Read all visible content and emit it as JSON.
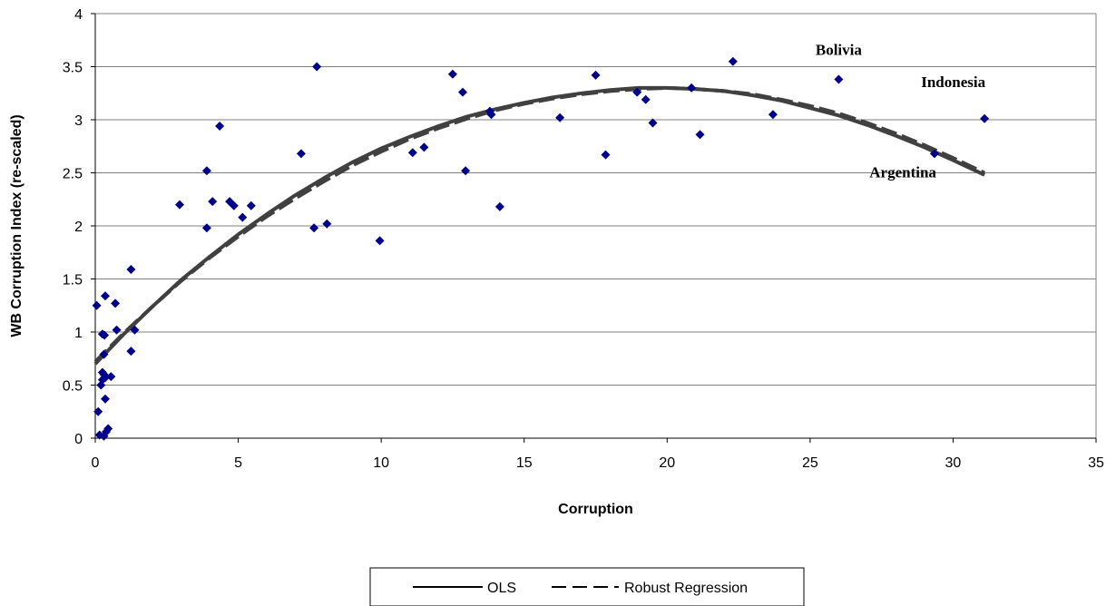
{
  "chart_data": {
    "type": "scatter",
    "title": "",
    "xlabel": "Corruption",
    "ylabel": "WB Corruption Index (re-scaled)",
    "xlim": [
      0,
      35
    ],
    "ylim": [
      0,
      4
    ],
    "x_ticks": [
      "0",
      "5",
      "10",
      "15",
      "20",
      "25",
      "30",
      "35"
    ],
    "y_ticks": [
      "0",
      "0.5",
      "1",
      "1.5",
      "2",
      "2.5",
      "3",
      "3.5",
      "4"
    ],
    "grid": "horizontal",
    "legend_position": "bottom",
    "colors": {
      "points": "#00008B",
      "fit_lines": "#404040",
      "grid": "#808080",
      "axes": "#000000"
    },
    "series": [
      {
        "name": "",
        "kind": "scatter",
        "marker": "diamond",
        "points": [
          [
            0.05,
            1.25
          ],
          [
            0.1,
            0.25
          ],
          [
            0.15,
            0.03
          ],
          [
            0.2,
            0.5
          ],
          [
            0.25,
            0.55
          ],
          [
            0.25,
            0.62
          ],
          [
            0.25,
            0.98
          ],
          [
            0.3,
            0.79
          ],
          [
            0.3,
            0.02
          ],
          [
            0.3,
            0.6
          ],
          [
            0.32,
            0.97
          ],
          [
            0.35,
            0.37
          ],
          [
            0.35,
            0.57
          ],
          [
            0.35,
            1.34
          ],
          [
            0.38,
            0.06
          ],
          [
            0.45,
            0.09
          ],
          [
            0.55,
            0.58
          ],
          [
            0.7,
            1.27
          ],
          [
            0.75,
            1.02
          ],
          [
            1.25,
            1.59
          ],
          [
            1.25,
            0.82
          ],
          [
            1.38,
            1.02
          ],
          [
            2.95,
            2.2
          ],
          [
            3.9,
            2.52
          ],
          [
            3.9,
            1.98
          ],
          [
            4.1,
            2.23
          ],
          [
            4.35,
            2.94
          ],
          [
            4.7,
            2.23
          ],
          [
            4.85,
            2.19
          ],
          [
            5.15,
            2.08
          ],
          [
            5.45,
            2.19
          ],
          [
            7.2,
            2.68
          ],
          [
            7.65,
            1.98
          ],
          [
            7.75,
            3.5
          ],
          [
            8.1,
            2.02
          ],
          [
            9.95,
            1.86
          ],
          [
            11.1,
            2.69
          ],
          [
            11.5,
            2.74
          ],
          [
            12.5,
            3.43
          ],
          [
            12.85,
            3.26
          ],
          [
            12.95,
            2.52
          ],
          [
            13.8,
            3.08
          ],
          [
            13.85,
            3.05
          ],
          [
            14.15,
            2.18
          ],
          [
            16.25,
            3.02
          ],
          [
            17.5,
            3.42
          ],
          [
            17.85,
            2.67
          ],
          [
            18.95,
            3.26
          ],
          [
            19.25,
            3.19
          ],
          [
            19.5,
            2.97
          ],
          [
            20.85,
            3.3
          ],
          [
            21.15,
            2.86
          ],
          [
            22.3,
            3.55
          ],
          [
            23.7,
            3.05
          ],
          [
            26.0,
            3.38
          ],
          [
            29.35,
            2.68
          ],
          [
            31.1,
            3.01
          ]
        ]
      },
      {
        "name": "OLS",
        "kind": "line",
        "style": "solid",
        "points": [
          [
            0,
            0.7
          ],
          [
            1,
            0.98
          ],
          [
            2,
            1.24
          ],
          [
            3,
            1.49
          ],
          [
            4,
            1.71
          ],
          [
            5,
            1.92
          ],
          [
            6,
            2.11
          ],
          [
            7,
            2.29
          ],
          [
            8,
            2.45
          ],
          [
            9,
            2.6
          ],
          [
            10,
            2.73
          ],
          [
            11,
            2.84
          ],
          [
            12,
            2.94
          ],
          [
            13,
            3.03
          ],
          [
            14,
            3.1
          ],
          [
            15,
            3.16
          ],
          [
            16,
            3.21
          ],
          [
            17,
            3.25
          ],
          [
            18,
            3.28
          ],
          [
            19,
            3.3
          ],
          [
            20,
            3.3
          ],
          [
            21,
            3.29
          ],
          [
            22,
            3.27
          ],
          [
            23,
            3.23
          ],
          [
            24,
            3.18
          ],
          [
            25,
            3.11
          ],
          [
            26,
            3.04
          ],
          [
            27,
            2.95
          ],
          [
            28,
            2.85
          ],
          [
            29,
            2.74
          ],
          [
            30,
            2.62
          ],
          [
            31.1,
            2.48
          ]
        ]
      },
      {
        "name": "Robust Regression",
        "kind": "line",
        "style": "dashed",
        "points": [
          [
            0,
            0.72
          ],
          [
            1,
            0.99
          ],
          [
            2,
            1.24
          ],
          [
            3,
            1.48
          ],
          [
            4,
            1.7
          ],
          [
            5,
            1.9
          ],
          [
            6,
            2.09
          ],
          [
            7,
            2.26
          ],
          [
            8,
            2.42
          ],
          [
            9,
            2.57
          ],
          [
            10,
            2.7
          ],
          [
            11,
            2.82
          ],
          [
            12,
            2.92
          ],
          [
            13,
            3.01
          ],
          [
            14,
            3.09
          ],
          [
            15,
            3.15
          ],
          [
            16,
            3.2
          ],
          [
            17,
            3.24
          ],
          [
            18,
            3.27
          ],
          [
            19,
            3.29
          ],
          [
            20,
            3.3
          ],
          [
            21,
            3.29
          ],
          [
            22,
            3.27
          ],
          [
            23,
            3.24
          ],
          [
            24,
            3.19
          ],
          [
            25,
            3.13
          ],
          [
            26,
            3.06
          ],
          [
            27,
            2.97
          ],
          [
            28,
            2.87
          ],
          [
            29,
            2.76
          ],
          [
            30,
            2.64
          ],
          [
            31.1,
            2.5
          ]
        ]
      }
    ],
    "annotations": [
      {
        "text": "Bolivia",
        "x": 26,
        "y": 3.38
      },
      {
        "text": "Indonesia",
        "x": 31.1,
        "y": 3.01
      },
      {
        "text": "Argentina",
        "x": 29.35,
        "y": 2.68
      }
    ]
  }
}
